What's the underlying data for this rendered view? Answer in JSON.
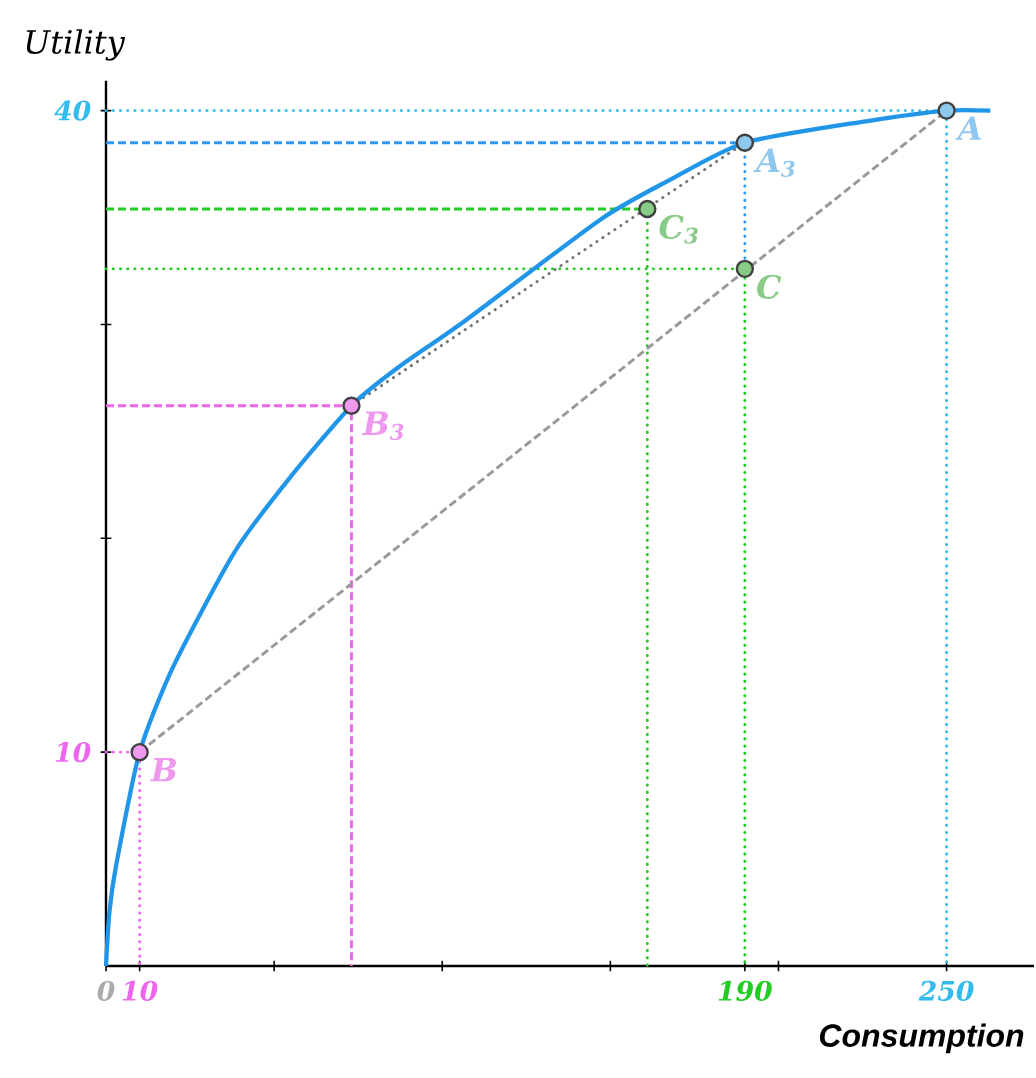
{
  "chart_data": {
    "type": "line",
    "xlabel": "Consumption",
    "ylabel": "Utility",
    "xlim": [
      0,
      276
    ],
    "ylim": [
      0,
      41.4
    ],
    "xticks": [
      0,
      10,
      {
        "value": 50,
        "label": null
      },
      {
        "value": 100,
        "label": null
      },
      {
        "value": 150,
        "label": null
      },
      190,
      {
        "value": 200,
        "label": null
      },
      250
    ],
    "yticks": [
      10,
      {
        "value": 20,
        "label": null
      },
      {
        "value": 30,
        "label": null
      },
      40
    ],
    "series": [
      {
        "color": "#33bbee",
        "line_style": "dotted",
        "x": [
          0,
          250,
          250
        ],
        "values": [
          40,
          40,
          0
        ]
      },
      {
        "color": "#3399ee",
        "line_style": "dashed",
        "x": [
          0,
          190
        ],
        "values": [
          38.5,
          38.5
        ]
      },
      {
        "color": "#3399ee",
        "line_style": "dotted",
        "x": [
          190,
          190
        ],
        "values": [
          38.5,
          32.6
        ]
      },
      {
        "color": "#22cc22",
        "line_style": "dashed",
        "x": [
          0,
          161
        ],
        "values": [
          35.4,
          35.4
        ]
      },
      {
        "color": "#22cc22",
        "line_style": "dotted",
        "x": [
          161,
          161
        ],
        "values": [
          35.4,
          0
        ]
      },
      {
        "color": "#22cc22",
        "line_style": "dotted",
        "x": [
          0,
          190,
          190
        ],
        "values": [
          32.6,
          32.6,
          0
        ]
      },
      {
        "color": "#ee66ee",
        "line_style": "dashed",
        "x": [
          0,
          73,
          73
        ],
        "values": [
          26.2,
          26.2,
          0
        ]
      },
      {
        "color": "#ee66ee",
        "line_style": "dotted",
        "x": [
          0,
          10,
          10
        ],
        "values": [
          10,
          10,
          0
        ]
      },
      {
        "color": "#999999",
        "line_style": "dashed",
        "x": [
          10,
          250
        ],
        "values": [
          10,
          40
        ]
      },
      {
        "color": "#777777",
        "line_style": "dotted",
        "x": [
          73,
          190
        ],
        "values": [
          26.2,
          38.5
        ]
      },
      {
        "color": "#2196e8",
        "line_style": "solid",
        "x": [
          0,
          1,
          3,
          10,
          20,
          38,
          54,
          73,
          87,
          107,
          147,
          167,
          190,
          226,
          250,
          263
        ],
        "values": [
          0,
          2.5,
          4.7,
          10,
          14,
          19.3,
          22.7,
          26.2,
          28,
          30.2,
          34.9,
          36.7,
          38.5,
          39.5,
          40,
          40
        ]
      },
      {
        "type": "scatter",
        "marker": "circle",
        "x": [
          250,
          190,
          161,
          190,
          73,
          10
        ],
        "values": [
          40,
          38.5,
          35.4,
          32.6,
          26.2,
          10
        ],
        "colors": [
          "#8fc8ee",
          "#8fc8ee",
          "#88cc88",
          "#88cc88",
          "#ee99ee",
          "#ee99ee"
        ]
      }
    ],
    "annotations": [
      {
        "text": "A",
        "x": 250,
        "y": 40
      },
      {
        "text": "A$_{3}$",
        "x": 190,
        "y": 38.5
      },
      {
        "text": "C$_{3}$",
        "x": 161,
        "y": 35.4
      },
      {
        "text": "C",
        "x": 190,
        "y": 32.6
      },
      {
        "text": "B$_{3}$",
        "x": 73,
        "y": 26.2
      },
      {
        "text": "B",
        "x": 10,
        "y": 10
      }
    ]
  }
}
